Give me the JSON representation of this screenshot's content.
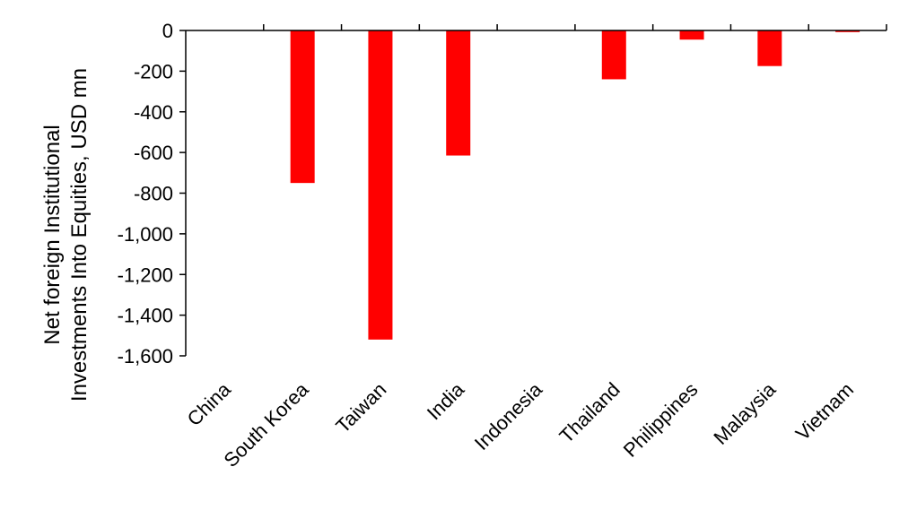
{
  "chart_data": {
    "type": "bar",
    "title": "",
    "xlabel": "",
    "ylabel_lines": [
      "Net foreign Institutional",
      "Investments Into Equities, USD mn"
    ],
    "categories": [
      "China",
      "South Korea",
      "Taiwan",
      "India",
      "Indonesia",
      "Thailand",
      "Philippines",
      "Malaysia",
      "Vietnam"
    ],
    "values": [
      0,
      -750,
      -1520,
      -615,
      0,
      -240,
      -45,
      -175,
      -8
    ],
    "ylim": [
      -1600,
      0
    ],
    "yticks": [
      0,
      -200,
      -400,
      -600,
      -800,
      -1000,
      -1200,
      -1400,
      -1600
    ],
    "ytick_labels": [
      "0",
      "-200",
      "-400",
      "-600",
      "-800",
      "-1,000",
      "-1,200",
      "-1,400",
      "-1,600"
    ],
    "bar_color": "#ff0000",
    "axis_color": "#000000",
    "grid": false,
    "legend": "none"
  }
}
